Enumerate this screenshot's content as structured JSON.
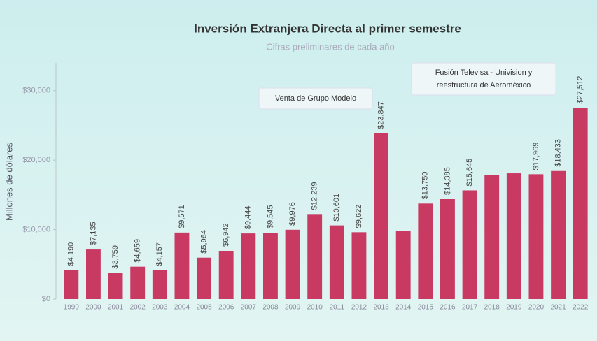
{
  "chart_data": {
    "type": "bar",
    "title": "Inversión Extranjera Directa al primer semestre",
    "subtitle": "Cifras preliminares de cada año",
    "y_label": "Millones de dólares",
    "categories": [
      "1999",
      "2000",
      "2001",
      "2002",
      "2003",
      "2004",
      "2005",
      "2006",
      "2007",
      "2008",
      "2009",
      "2010",
      "2011",
      "2012",
      "2013",
      "2014",
      "2015",
      "2016",
      "2017",
      "2018",
      "2019",
      "2020",
      "2021",
      "2022"
    ],
    "values": [
      4190,
      7135,
      3759,
      4659,
      4157,
      9571,
      5964,
      6942,
      9444,
      9545,
      9976,
      12239,
      10601,
      9622,
      23847,
      9800,
      13750,
      14385,
      15645,
      17842,
      18102,
      17969,
      18433,
      27512
    ],
    "value_labels": [
      "$4,190",
      "$7,135",
      "$3,759",
      "$4,659",
      "$4,157",
      "$9,571",
      "$5,964",
      "$6,942",
      "$9,444",
      "$9,545",
      "$9,976",
      "$12,239",
      "$10,601",
      "$9,622",
      "$23,847",
      null,
      "$13,750",
      "$14,385",
      "$15,645",
      null,
      null,
      "$17,969",
      "$18,433",
      "$27,512"
    ],
    "color": "#c93a63",
    "ylim": [
      0,
      34000
    ],
    "yticks": [
      {
        "value": 0,
        "label": "$0"
      },
      {
        "value": 10000,
        "label": "$10,000"
      },
      {
        "value": 20000,
        "label": "$20,000"
      },
      {
        "value": 30000,
        "label": "$30,000"
      }
    ],
    "annotations": [
      {
        "lines": [
          "Venta de Grupo Modelo"
        ]
      },
      {
        "lines": [
          "Fusión Televisa - Univision y",
          "reestructura de Aeroméxico"
        ]
      }
    ]
  }
}
